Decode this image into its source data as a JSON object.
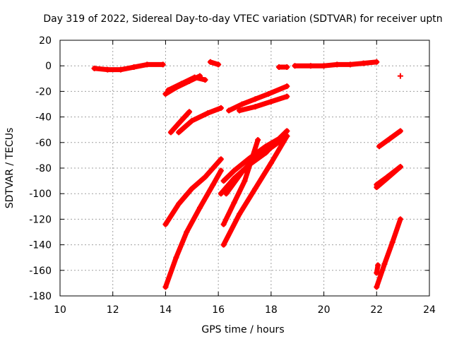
{
  "chart_data": {
    "type": "scatter",
    "title": "Day 319 of 2022, Sidereal Day-to-day VTEC variation (SDTVAR) for receiver uptn",
    "xlabel": "GPS time / hours",
    "ylabel": "SDTVAR / TECUs",
    "xlim": [
      10,
      24
    ],
    "ylim": [
      -180,
      20
    ],
    "xticks": [
      "10",
      "12",
      "14",
      "16",
      "18",
      "20",
      "22",
      "24"
    ],
    "yticks": [
      "20",
      "0",
      "-20",
      "-40",
      "-60",
      "-80",
      "-100",
      "-120",
      "-140",
      "-160",
      "-180"
    ],
    "grid": true,
    "marker": "+",
    "series_color": "#ff0000",
    "tracks": [
      {
        "points": [
          [
            11.3,
            -2
          ],
          [
            11.8,
            -3
          ],
          [
            12.3,
            -3
          ],
          [
            12.8,
            -1
          ],
          [
            13.3,
            1
          ],
          [
            13.9,
            1
          ]
        ]
      },
      {
        "points": [
          [
            14.0,
            -22
          ],
          [
            14.4,
            -17
          ],
          [
            14.9,
            -12
          ],
          [
            15.3,
            -8
          ]
        ]
      },
      {
        "points": [
          [
            14.1,
            -19
          ],
          [
            14.6,
            -14
          ],
          [
            15.1,
            -9
          ],
          [
            15.5,
            -11
          ]
        ]
      },
      {
        "points": [
          [
            15.7,
            3
          ],
          [
            16.0,
            1
          ]
        ]
      },
      {
        "points": [
          [
            14.2,
            -52
          ],
          [
            14.5,
            -45
          ],
          [
            14.9,
            -36
          ]
        ]
      },
      {
        "points": [
          [
            14.5,
            -52
          ],
          [
            15.0,
            -43
          ],
          [
            15.6,
            -37
          ],
          [
            16.1,
            -33
          ]
        ]
      },
      {
        "points": [
          [
            16.4,
            -35
          ],
          [
            16.9,
            -30
          ],
          [
            17.4,
            -26
          ],
          [
            17.9,
            -22
          ],
          [
            18.6,
            -16
          ]
        ]
      },
      {
        "points": [
          [
            16.8,
            -35
          ],
          [
            17.4,
            -32
          ],
          [
            18.0,
            -28
          ],
          [
            18.6,
            -24
          ]
        ]
      },
      {
        "points": [
          [
            18.3,
            -1
          ],
          [
            18.6,
            -1
          ]
        ]
      },
      {
        "points": [
          [
            18.9,
            0
          ],
          [
            19.5,
            0
          ],
          [
            20.0,
            0
          ],
          [
            20.5,
            1
          ],
          [
            21.0,
            1
          ],
          [
            21.5,
            2
          ],
          [
            22.0,
            3
          ]
        ]
      },
      {
        "points": [
          [
            22.9,
            -8
          ]
        ]
      },
      {
        "points": [
          [
            14.0,
            -124
          ],
          [
            14.5,
            -108
          ],
          [
            15.0,
            -96
          ],
          [
            15.5,
            -87
          ],
          [
            16.1,
            -73
          ]
        ]
      },
      {
        "points": [
          [
            14.0,
            -173
          ],
          [
            14.4,
            -150
          ],
          [
            14.8,
            -130
          ],
          [
            15.3,
            -111
          ],
          [
            15.8,
            -93
          ],
          [
            16.1,
            -82
          ]
        ]
      },
      {
        "points": [
          [
            16.2,
            -124
          ],
          [
            16.6,
            -107
          ],
          [
            17.0,
            -90
          ],
          [
            17.5,
            -58
          ]
        ]
      },
      {
        "points": [
          [
            16.1,
            -100
          ],
          [
            16.6,
            -88
          ],
          [
            17.2,
            -77
          ],
          [
            17.8,
            -68
          ],
          [
            18.6,
            -51
          ]
        ]
      },
      {
        "points": [
          [
            16.2,
            -90
          ],
          [
            16.6,
            -82
          ],
          [
            17.2,
            -72
          ],
          [
            17.8,
            -63
          ],
          [
            18.3,
            -57
          ],
          [
            18.6,
            -51
          ]
        ]
      },
      {
        "points": [
          [
            16.2,
            -140
          ],
          [
            16.8,
            -116
          ],
          [
            17.4,
            -96
          ],
          [
            18.0,
            -76
          ],
          [
            18.6,
            -55
          ]
        ]
      },
      {
        "points": [
          [
            16.3,
            -100
          ],
          [
            16.9,
            -83
          ],
          [
            17.4,
            -72
          ],
          [
            18.0,
            -64
          ],
          [
            18.6,
            -55
          ]
        ]
      },
      {
        "points": [
          [
            22.1,
            -63
          ],
          [
            22.5,
            -57
          ],
          [
            22.9,
            -51
          ]
        ]
      },
      {
        "points": [
          [
            22.0,
            -95
          ],
          [
            22.4,
            -88
          ],
          [
            22.9,
            -79
          ]
        ]
      },
      {
        "points": [
          [
            22.0,
            -93
          ],
          [
            22.4,
            -87
          ],
          [
            22.9,
            -79
          ]
        ]
      },
      {
        "points": [
          [
            22.0,
            -162
          ],
          [
            22.05,
            -156
          ]
        ]
      },
      {
        "points": [
          [
            22.0,
            -173
          ],
          [
            22.3,
            -155
          ],
          [
            22.6,
            -138
          ],
          [
            22.9,
            -120
          ]
        ]
      }
    ]
  }
}
